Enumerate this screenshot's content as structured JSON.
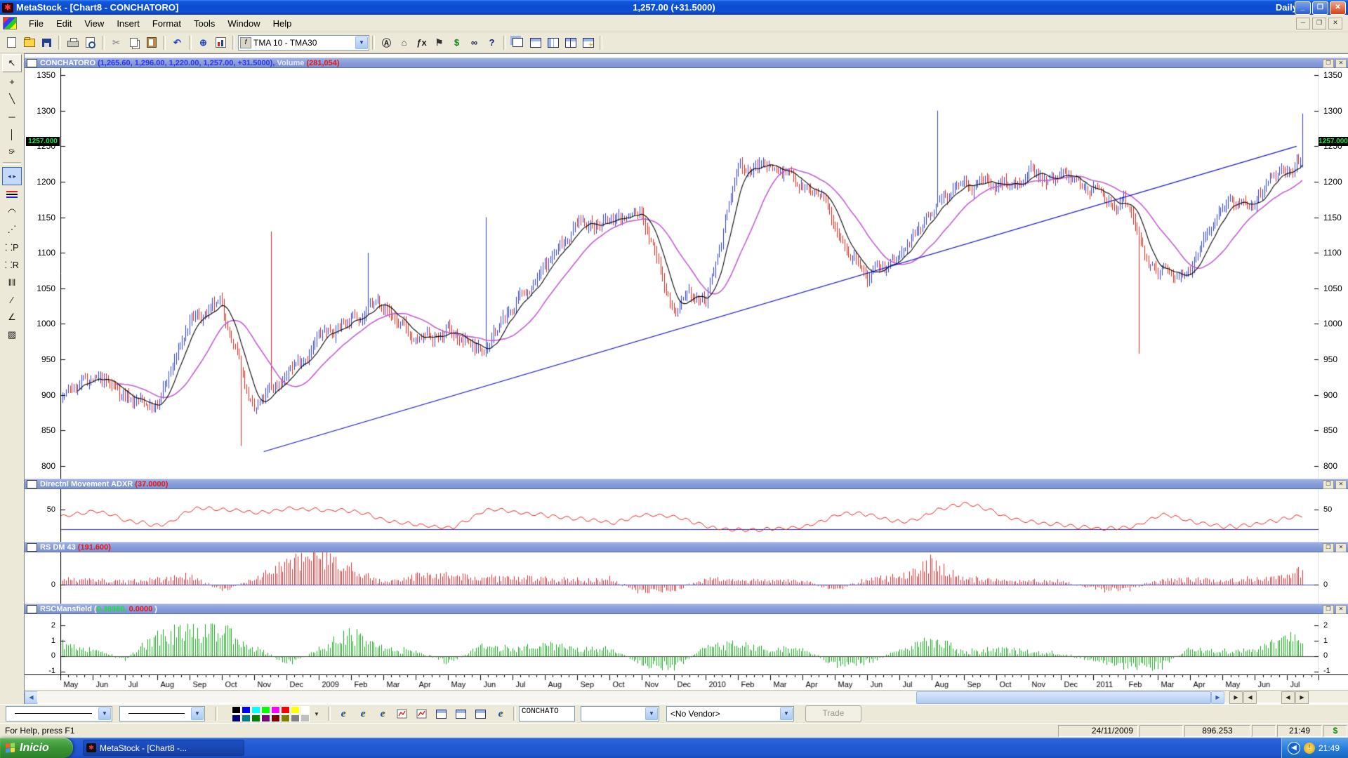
{
  "window": {
    "title": "MetaStock - [Chart8 - CONCHATORO]",
    "center_value": "1,257.00 (+31.5000)",
    "periodicity": "Daily",
    "buttons": {
      "minimize": "_",
      "restore": "❐",
      "close": "✕"
    }
  },
  "menu": {
    "items": [
      "File",
      "Edit",
      "View",
      "Insert",
      "Format",
      "Tools",
      "Window",
      "Help"
    ]
  },
  "toolbar": {
    "groups_before_combo": [
      [
        "new-icon",
        "open-icon",
        "save-icon"
      ],
      [
        "print-icon",
        "print-preview-icon"
      ],
      [
        "cut-icon",
        "copy-icon",
        "paste-icon"
      ],
      [
        "undo-icon"
      ],
      [
        "zoom-icon",
        "chart-wizard-icon"
      ]
    ],
    "indicator_dropdown": "TMA 10 - TMA30",
    "indicator_icon": "f",
    "groups_after_combo": [
      [
        "expert-advisor-icon",
        "expert-commentary-icon",
        "function-icon",
        "explorer-flag-icon",
        "dollar-icon",
        "binoculars-icon",
        "context-help-icon"
      ],
      [
        "cascade-windows-icon",
        "tile-horizontal-icon",
        "tile-vertical-icon",
        "arrange-windows-icon",
        "window-options-icon"
      ]
    ]
  },
  "left_tools": {
    "icons": [
      {
        "name": "pointer-tool-icon",
        "style": "raised"
      },
      {
        "name": "crosshair-tool-icon"
      },
      {
        "name": "trendline-tool-icon"
      },
      {
        "name": "horizontal-line-tool-icon"
      },
      {
        "name": "vertical-line-tool-icon"
      },
      {
        "name": "stop-tool-icon"
      },
      {
        "name": "separator"
      },
      {
        "name": "scroll-expand-icon",
        "style": "sel"
      },
      {
        "name": "line-styles-icon"
      },
      {
        "name": "fibonacci-arcs-icon"
      },
      {
        "name": "fibonacci-fan-icon"
      },
      {
        "name": "fibonacci-projection-icon"
      },
      {
        "name": "fibonacci-retracement-icon"
      },
      {
        "name": "fibonacci-timezones-icon"
      },
      {
        "name": "trend-tool-icon"
      },
      {
        "name": "gann-fan-icon"
      },
      {
        "name": "hatch-tool-icon"
      }
    ]
  },
  "price_panel": {
    "symbol": "CONCHATORO",
    "ohlc_label": " (1,265.60, 1,296.00, 1,220.00, 1,257.00, +31.5000), ",
    "volume_label": "Volume ",
    "volume_value": "(281,054)",
    "current_price_label": "1257.000"
  },
  "adxr_panel": {
    "title": "Directnl Movement ADXR ",
    "value": "(37.0000)"
  },
  "rs_panel": {
    "title": "RS DM 43 ",
    "value": "(191.600)"
  },
  "mansfield_panel": {
    "title": "RSCMansfield ",
    "open_paren": "(",
    "value_green": "0.36980,",
    "value_red": " 0.0000",
    "close_paren": " )"
  },
  "date_axis": {
    "labels": [
      "May",
      "Jun",
      "Jul",
      "Aug",
      "Sep",
      "Oct",
      "Nov",
      "Dec",
      "2009",
      "Feb",
      "Mar",
      "Apr",
      "May",
      "Jun",
      "Jul",
      "Aug",
      "Sep",
      "Oct",
      "Nov",
      "Dec",
      "2010",
      "Feb",
      "Mar",
      "Apr",
      "May",
      "Jun",
      "Jul",
      "Aug",
      "Sep",
      "Oct",
      "Nov",
      "Dec",
      "2011",
      "Feb",
      "Mar",
      "Apr",
      "May",
      "Jun",
      "Jul"
    ]
  },
  "chart_data": {
    "x_labels": [
      "May",
      "Jun",
      "Jul",
      "Aug",
      "Sep",
      "Oct",
      "Nov",
      "Dec",
      "2009",
      "Feb",
      "Mar",
      "Apr",
      "May",
      "Jun",
      "Jul",
      "Aug",
      "Sep",
      "Oct",
      "Nov",
      "Dec",
      "2010",
      "Feb",
      "Mar",
      "Apr",
      "May",
      "Jun",
      "Jul",
      "Aug",
      "Sep",
      "Oct",
      "Nov",
      "Dec",
      "2011",
      "Feb",
      "Mar",
      "Apr",
      "May",
      "Jun",
      "Jul"
    ],
    "panels": [
      {
        "type": "candlestick",
        "name": "CONCHATORO",
        "open": 1265.6,
        "high": 1296.0,
        "low": 1220.0,
        "close": 1257.0,
        "change": 31.5,
        "volume": 281054,
        "ylim": [
          782,
          1360
        ],
        "yticks": [
          1350,
          1300,
          1250,
          1200,
          1150,
          1100,
          1050,
          1000,
          950,
          900,
          850,
          800
        ],
        "monthly_close_anchors": [
          900,
          920,
          900,
          880,
          1000,
          1020,
          870,
          930,
          980,
          1010,
          1030,
          970,
          985,
          965,
          1020,
          1075,
          1145,
          1140,
          1155,
          1020,
          1030,
          1220,
          1225,
          1200,
          1150,
          1060,
          1090,
          1160,
          1200,
          1195,
          1210,
          1205,
          1190,
          1165,
          1060,
          1090,
          1180,
          1175,
          1210,
          1257
        ],
        "spikes_high": [
          {
            "m": 6.5,
            "v": 1130
          },
          {
            "m": 9.5,
            "v": 1100
          },
          {
            "m": 13.2,
            "v": 1150
          },
          {
            "m": 27.2,
            "v": 1300
          }
        ],
        "spikes_low": [
          {
            "m": 5.6,
            "v": 828
          },
          {
            "m": 33.4,
            "v": 958
          }
        ],
        "trendline": {
          "m1": 6.3,
          "p1": 820,
          "m2": 38.3,
          "p2": 1250
        },
        "ma_short_period": 10,
        "ma_long_period": 30,
        "last_price": 1257,
        "colors": {
          "up": "#2e3fc4",
          "down": "#d8281c",
          "ma_short": "#000000",
          "ma_long": "#c25ed0",
          "trendline": "#1414c8"
        }
      },
      {
        "type": "line",
        "title": "Directnl Movement ADXR",
        "current": 37.0,
        "ylim": [
          0,
          82
        ],
        "yticks": [
          50
        ],
        "hline": 20,
        "anchors": [
          40,
          50,
          30,
          25,
          55,
          50,
          45,
          52,
          50,
          48,
          30,
          25,
          20,
          52,
          48,
          40,
          34,
          30,
          45,
          38,
          22,
          18,
          20,
          24,
          45,
          42,
          28,
          50,
          62,
          40,
          30,
          26,
          20,
          22,
          45,
          28,
          22,
          30,
          40,
          42
        ],
        "color": "#e02020",
        "hline_color": "#2828b0"
      },
      {
        "type": "bar",
        "title": "RS DM 43",
        "current": 191.6,
        "ylim": [
          -1.1,
          1.9
        ],
        "yticks": [
          0
        ],
        "hline": 0,
        "anchors": [
          0.3,
          0.25,
          0.15,
          0.3,
          0.5,
          -0.3,
          0.3,
          1.3,
          1.5,
          0.9,
          0.15,
          0.45,
          0.5,
          0.35,
          0.4,
          0.3,
          0.25,
          0.3,
          -0.4,
          -0.3,
          0.35,
          0.25,
          0.2,
          0.25,
          -0.3,
          0.3,
          0.45,
          1.2,
          0.35,
          0.25,
          0.2,
          0.2,
          -0.25,
          -0.3,
          0.25,
          0.3,
          0.25,
          0.3,
          0.6,
          0.9
        ],
        "color": "#d83030",
        "hline_color": "#3344bb"
      },
      {
        "type": "bar",
        "title": "RSCMansfield",
        "current": [
          0.3698,
          0.0
        ],
        "ylim": [
          -1.2,
          2.75
        ],
        "yticks": [
          2,
          1,
          0,
          -1
        ],
        "hline": 0,
        "anchors": [
          0.9,
          0.4,
          -0.2,
          1.3,
          1.5,
          1.6,
          0.6,
          -0.5,
          0.4,
          1.4,
          0.5,
          0.3,
          -0.4,
          0.6,
          0.5,
          0.7,
          0.4,
          0.5,
          -0.5,
          -0.7,
          0.6,
          0.7,
          0.4,
          0.5,
          -0.6,
          -0.4,
          0.4,
          1.0,
          0.3,
          0.4,
          0.3,
          0.15,
          -0.25,
          -0.6,
          -0.7,
          0.5,
          0.3,
          0.4,
          1.1,
          1.2
        ],
        "color": "#1ca422",
        "hline_color": "#444444"
      }
    ]
  },
  "bottom_toolbar": {
    "palette_row1": [
      "#000000",
      "#0000ff",
      "#00ffff",
      "#00ff00",
      "#ff00ff",
      "#ff0000",
      "#ffff00",
      "#ffffff"
    ],
    "palette_row2": [
      "#000080",
      "#008080",
      "#008000",
      "#800080",
      "#800000",
      "#808000",
      "#808080",
      "#c0c0c0"
    ],
    "icons": [
      "explorer-icon",
      "explorer-icon",
      "explorer-icon",
      "chart-report-icon",
      "chart-report-icon",
      "layout-top-icon",
      "layout-top-icon",
      "layout-top-icon",
      "explorer-icon"
    ],
    "symbol_box": "CONCHATO",
    "vendor_dropdown": "<No Vendor>",
    "trade_button": "Trade"
  },
  "status_bar": {
    "help": "For Help, press F1",
    "date": "24/11/2009",
    "value": "896.253",
    "time": "21:49",
    "currency": "$"
  },
  "taskbar": {
    "start": "Inicio",
    "task": "MetaStock - [Chart8 -...",
    "tray_time": "21:49"
  }
}
